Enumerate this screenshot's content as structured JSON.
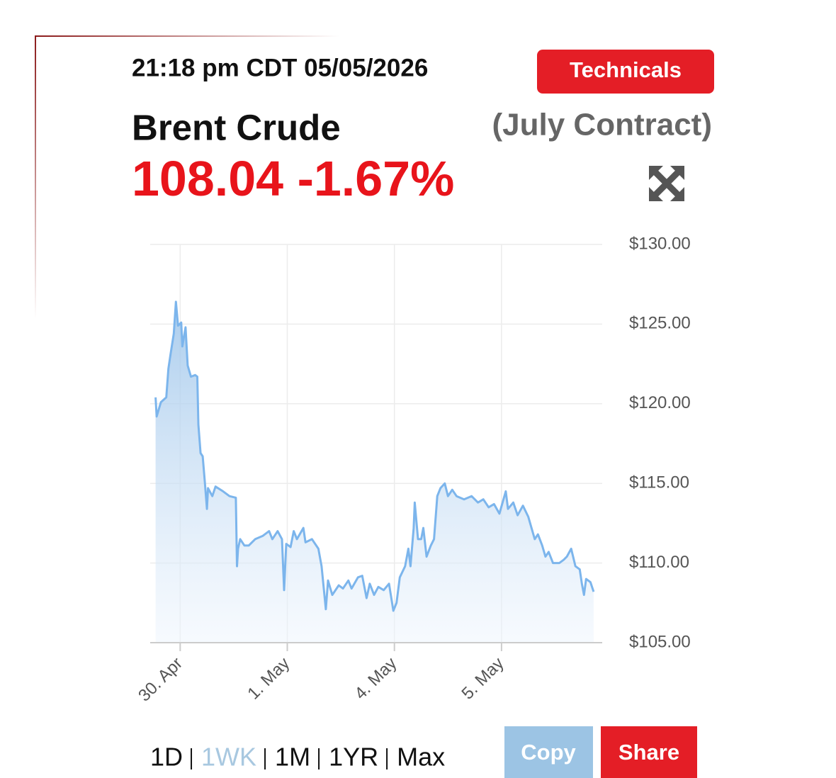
{
  "header": {
    "timestamp": "21:18 pm CDT 05/05/2026",
    "technicals_button": "Technicals",
    "name": "Brent Crude",
    "contract": "(July Contract)",
    "price": "108.04",
    "change": "-1.67%"
  },
  "chart_data": {
    "type": "area",
    "color": "#7cb5ec",
    "grid": true,
    "x": [
      -0.23,
      -0.22,
      -0.18,
      -0.13,
      -0.11,
      -0.09,
      -0.06,
      -0.04,
      -0.02,
      0.01,
      0.02,
      0.05,
      0.07,
      0.1,
      0.14,
      0.16,
      0.17,
      0.19,
      0.21,
      0.23,
      0.25,
      0.26,
      0.3,
      0.33,
      0.4,
      0.46,
      0.52,
      0.53,
      0.54,
      0.56,
      0.6,
      0.64,
      0.7,
      0.77,
      0.83,
      0.86,
      0.91,
      0.95,
      0.97,
      0.99,
      1.03,
      1.06,
      1.09,
      1.15,
      1.17,
      1.23,
      1.29,
      1.32,
      1.36,
      1.38,
      1.42,
      1.48,
      1.52,
      1.57,
      1.6,
      1.66,
      1.7,
      1.74,
      1.77,
      1.81,
      1.85,
      1.9,
      1.95,
      1.99,
      2.02,
      2.05,
      2.1,
      2.13,
      2.15,
      2.18,
      2.19,
      2.22,
      2.25,
      2.27,
      2.3,
      2.34,
      2.37,
      2.4,
      2.43,
      2.47,
      2.5,
      2.54,
      2.58,
      2.65,
      2.72,
      2.78,
      2.83,
      2.88,
      2.93,
      2.98,
      3.01,
      3.04,
      3.06,
      3.11,
      3.15,
      3.2,
      3.25,
      3.28,
      3.31,
      3.34,
      3.38,
      3.41,
      3.44,
      3.48,
      3.54,
      3.58,
      3.61,
      3.65,
      3.69,
      3.73,
      3.75,
      3.77,
      3.79,
      3.83,
      3.86
    ],
    "values": [
      120.4,
      119.2,
      120.1,
      120.4,
      122.2,
      123.1,
      124.4,
      126.4,
      124.9,
      125.1,
      123.6,
      124.8,
      122.4,
      121.7,
      121.8,
      121.7,
      118.7,
      116.9,
      116.7,
      115.1,
      113.4,
      114.7,
      114.2,
      114.8,
      114.5,
      114.2,
      114.1,
      109.8,
      110.9,
      111.5,
      111.1,
      111.1,
      111.5,
      111.7,
      112.0,
      111.5,
      112.0,
      111.5,
      108.3,
      111.2,
      111.0,
      112.0,
      111.5,
      112.2,
      111.3,
      111.5,
      110.9,
      109.8,
      107.1,
      108.9,
      108.0,
      108.6,
      108.4,
      108.9,
      108.4,
      109.1,
      109.2,
      107.8,
      108.7,
      108.0,
      108.5,
      108.3,
      108.7,
      107.0,
      107.5,
      109.1,
      109.8,
      110.9,
      109.8,
      112.2,
      113.8,
      111.5,
      111.5,
      112.2,
      110.4,
      111.1,
      111.5,
      114.2,
      114.7,
      115.0,
      114.2,
      114.6,
      114.2,
      114.0,
      114.2,
      113.8,
      114.0,
      113.5,
      113.7,
      113.1,
      113.8,
      114.5,
      113.4,
      113.8,
      113.0,
      113.6,
      112.9,
      112.2,
      111.5,
      111.8,
      111.1,
      110.4,
      110.7,
      110.0,
      110.0,
      110.2,
      110.4,
      110.9,
      109.8,
      109.6,
      108.7,
      108.0,
      109.0,
      108.8,
      108.2
    ],
    "xlim": [
      -0.28,
      3.94
    ],
    "xticks": [
      {
        "value": 0,
        "label": "30. Apr"
      },
      {
        "value": 1,
        "label": "1. May"
      },
      {
        "value": 2,
        "label": "4. May"
      },
      {
        "value": 3,
        "label": "5. May"
      }
    ],
    "ylim": [
      105,
      130
    ],
    "yticks": [
      {
        "value": 105,
        "label": "$105.00"
      },
      {
        "value": 110,
        "label": "$110.00"
      },
      {
        "value": 115,
        "label": "$115.00"
      },
      {
        "value": 120,
        "label": "$120.00"
      },
      {
        "value": 125,
        "label": "$125.00"
      },
      {
        "value": 130,
        "label": "$130.00"
      }
    ]
  },
  "controls": {
    "ranges": [
      "1D",
      "1WK",
      "1M",
      "1YR",
      "Max"
    ],
    "selected_range": "1WK",
    "copy_button": "Copy",
    "share_button": "Share"
  }
}
